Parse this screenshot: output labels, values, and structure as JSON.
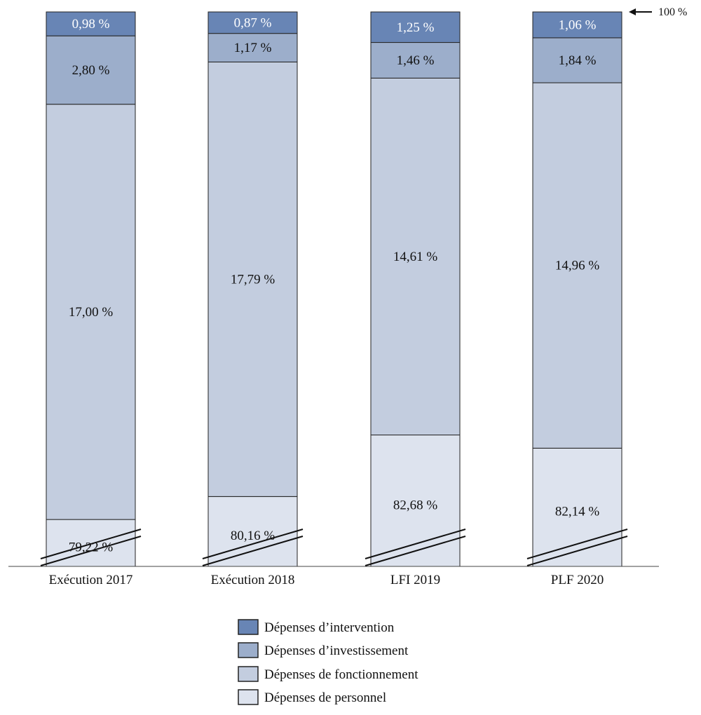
{
  "chart_data": {
    "type": "bar",
    "stacked": true,
    "percent": true,
    "categories": [
      "Exécution 2017",
      "Exécution 2018",
      "LFI 2019",
      "PLF 2020"
    ],
    "series": [
      {
        "name": "Dépenses de personnel",
        "values": [
          79.22,
          80.16,
          82.68,
          82.14
        ],
        "labels": [
          "79,22 %",
          "80,16 %",
          "82,68 %",
          "82,14 %"
        ],
        "color": "#dde3ee"
      },
      {
        "name": "Dépenses de fonctionnement",
        "values": [
          17.0,
          17.79,
          14.61,
          14.96
        ],
        "labels": [
          "17,00 %",
          "17,79 %",
          "14,61 %",
          "14,96 %"
        ],
        "color": "#c3cddf"
      },
      {
        "name": "Dépenses d’investissement",
        "values": [
          2.8,
          1.17,
          1.46,
          1.84
        ],
        "labels": [
          "2,80 %",
          "1,17 %",
          "1,46 %",
          "1,84 %"
        ],
        "color": "#9caecb"
      },
      {
        "name": "Dépenses d’intervention",
        "values": [
          0.98,
          0.87,
          1.25,
          1.06
        ],
        "labels": [
          "0,98 %",
          "0,87 %",
          "1,25 %",
          "1,06 %"
        ],
        "color": "#6885b5"
      }
    ],
    "reference_label": "100 %",
    "axis_break": true,
    "legend_position": "bottom-center",
    "legend_order": [
      "Dépenses d’intervention",
      "Dépenses d’investissement",
      "Dépenses de fonctionnement",
      "Dépenses de personnel"
    ],
    "grid": false
  }
}
